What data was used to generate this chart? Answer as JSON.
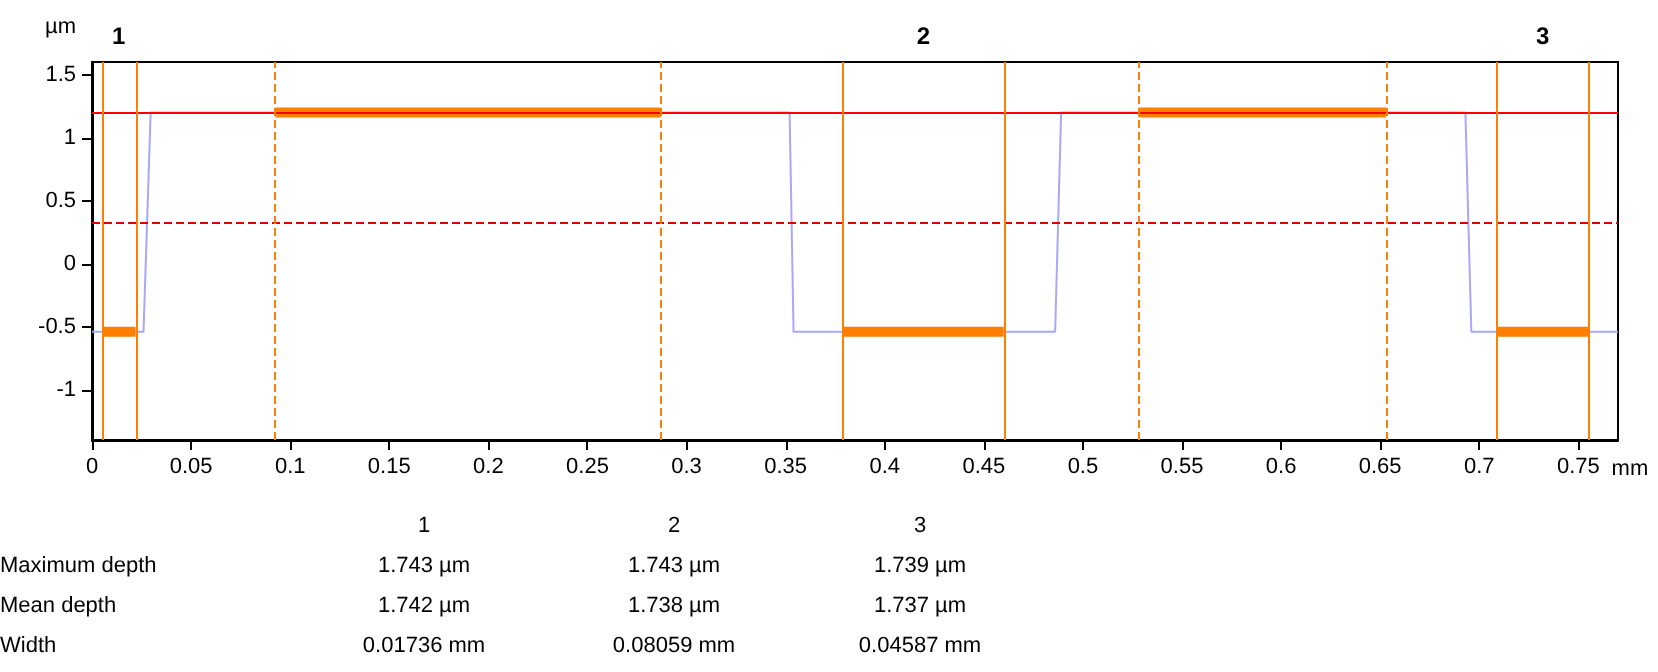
{
  "chart_data": {
    "type": "line",
    "xlabel": "mm",
    "ylabel": "µm",
    "xlim": [
      0,
      0.77
    ],
    "ylim": [
      -1.4,
      1.6
    ],
    "xticks": [
      0,
      0.05,
      0.1,
      0.15,
      0.2,
      0.25,
      0.3,
      0.35,
      0.4,
      0.45,
      0.5,
      0.55,
      0.6,
      0.65,
      0.7,
      0.75
    ],
    "yticks": [
      -1,
      -0.5,
      0,
      0.5,
      1,
      1.5
    ],
    "grid": false,
    "marker": "none",
    "line_style": "solid",
    "series": [
      {
        "color": "#a8a8f8",
        "x": [
          0,
          0.026,
          0.0296,
          0.352,
          0.354,
          0.486,
          0.489,
          0.693,
          0.696,
          0.77
        ],
        "values": [
          -0.54,
          -0.54,
          1.2,
          1.2,
          -0.54,
          -0.54,
          1.2,
          1.2,
          -0.54,
          -0.54
        ]
      },
      {
        "color": "#ff8000",
        "x": [
          0.005,
          0.022
        ],
        "values": [
          -0.54,
          -0.54
        ]
      },
      {
        "color": "#ff8000",
        "x": [
          0.0925,
          0.287
        ],
        "values": [
          1.2,
          1.2
        ]
      },
      {
        "color": "#ff8000",
        "x": [
          0.379,
          0.46
        ],
        "values": [
          -0.54,
          -0.54
        ]
      },
      {
        "color": "#ff8000",
        "x": [
          0.528,
          0.653
        ],
        "values": [
          1.2,
          1.2
        ]
      },
      {
        "color": "#ff8000",
        "x": [
          0.709,
          0.755
        ],
        "values": [
          -0.54,
          -0.54
        ]
      }
    ],
    "ref_lines": [
      {
        "axis": "y",
        "value": 1.2,
        "color": "#ff0000",
        "line_style": "solid"
      },
      {
        "axis": "y",
        "value": 0.33,
        "color": "#e00000",
        "line_style": "dashed"
      },
      {
        "axis": "x",
        "value": 0.005,
        "color": "#ff8000",
        "line_style": "solid"
      },
      {
        "axis": "x",
        "value": 0.022,
        "color": "#ff8000",
        "line_style": "solid"
      },
      {
        "axis": "x",
        "value": 0.0925,
        "color": "#ff8000",
        "line_style": "dashed"
      },
      {
        "axis": "x",
        "value": 0.287,
        "color": "#ff8000",
        "line_style": "dashed"
      },
      {
        "axis": "x",
        "value": 0.379,
        "color": "#ff8000",
        "line_style": "solid"
      },
      {
        "axis": "x",
        "value": 0.46,
        "color": "#ff8000",
        "line_style": "solid"
      },
      {
        "axis": "x",
        "value": 0.528,
        "color": "#ff8000",
        "line_style": "dashed"
      },
      {
        "axis": "x",
        "value": 0.653,
        "color": "#ff8000",
        "line_style": "dashed"
      },
      {
        "axis": "x",
        "value": 0.709,
        "color": "#ff8000",
        "line_style": "solid"
      },
      {
        "axis": "x",
        "value": 0.755,
        "color": "#ff8000",
        "line_style": "solid"
      }
    ],
    "annotations": [
      "1",
      "2",
      "3",
      "1",
      "2",
      "3",
      "Maximum depth",
      "1.743 µm",
      "1.743 µm",
      "1.739 µm",
      "Mean depth",
      "1.742 µm",
      "1.738 µm",
      "1.737 µm",
      "Width",
      "0.01736 mm",
      "0.08059 mm",
      "0.04587 mm"
    ]
  }
}
